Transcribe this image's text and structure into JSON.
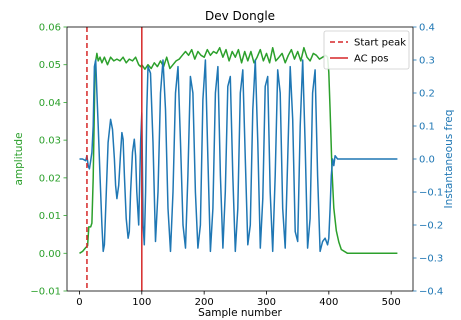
{
  "chart_data": {
    "type": "line",
    "title": "Dev Dongle",
    "xlabel": "Sample number",
    "ylabel_left": "amplitude",
    "ylabel_right": "Instantaneous freq",
    "xlim": [
      -20,
      535
    ],
    "ylim_left": [
      -0.01,
      0.06
    ],
    "ylim_right": [
      -0.4,
      0.4
    ],
    "xticks": [
      "0",
      "100",
      "200",
      "300",
      "400",
      "500"
    ],
    "yticks_left": [
      "−0.01",
      "0.00",
      "0.01",
      "0.02",
      "0.03",
      "0.04",
      "0.05",
      "0.06"
    ],
    "yticks_right": [
      "−0.4",
      "−0.3",
      "−0.2",
      "−0.1",
      "0.0",
      "0.1",
      "0.2",
      "0.3",
      "0.4"
    ],
    "grid": false,
    "legend_position": "top-right",
    "colors": {
      "amplitude": "#2ca02c",
      "freq": "#1f77b4",
      "markers": "#d62728",
      "left_axis": "#2ca02c",
      "right_axis": "#1f77b4"
    },
    "markers": [
      {
        "name": "Start peak",
        "x": 12,
        "style": "dashed"
      },
      {
        "name": "AC pos",
        "x": 100,
        "style": "solid"
      }
    ],
    "series": [
      {
        "axis": "left",
        "x": [
          0,
          5,
          10,
          13,
          15,
          18,
          20,
          22,
          25,
          28,
          30,
          33,
          36,
          40,
          45,
          50,
          55,
          60,
          65,
          70,
          75,
          80,
          85,
          90,
          95,
          98,
          100,
          105,
          110,
          115,
          120,
          125,
          130,
          135,
          140,
          145,
          150,
          155,
          160,
          165,
          170,
          175,
          180,
          185,
          190,
          195,
          200,
          205,
          210,
          215,
          220,
          225,
          230,
          235,
          240,
          245,
          250,
          255,
          260,
          265,
          270,
          275,
          280,
          285,
          290,
          295,
          300,
          305,
          310,
          315,
          320,
          325,
          330,
          335,
          340,
          345,
          350,
          355,
          360,
          365,
          370,
          375,
          380,
          385,
          390,
          395,
          398,
          400,
          402,
          405,
          408,
          412,
          416,
          420,
          430,
          450,
          480,
          510
        ],
        "values": [
          0.0,
          0.0005,
          0.0015,
          0.002,
          0.007,
          0.007,
          0.008,
          0.02,
          0.05,
          0.053,
          0.051,
          0.052,
          0.0505,
          0.052,
          0.05,
          0.052,
          0.051,
          0.0515,
          0.051,
          0.052,
          0.0505,
          0.0515,
          0.051,
          0.052,
          0.05,
          0.0495,
          0.05,
          0.0488,
          0.05,
          0.049,
          0.0505,
          0.0495,
          0.051,
          0.0495,
          0.052,
          0.049,
          0.05,
          0.051,
          0.0515,
          0.0525,
          0.0535,
          0.0525,
          0.054,
          0.0515,
          0.0535,
          0.0525,
          0.052,
          0.054,
          0.0525,
          0.0535,
          0.053,
          0.0545,
          0.052,
          0.054,
          0.051,
          0.0535,
          0.052,
          0.054,
          0.0505,
          0.0535,
          0.051,
          0.0535,
          0.0505,
          0.052,
          0.054,
          0.051,
          0.053,
          0.0505,
          0.0545,
          0.051,
          0.052,
          0.053,
          0.0505,
          0.0525,
          0.054,
          0.0515,
          0.0535,
          0.051,
          0.0545,
          0.052,
          0.051,
          0.053,
          0.0525,
          0.0515,
          0.052,
          0.0525,
          0.052,
          0.048,
          0.038,
          0.022,
          0.012,
          0.006,
          0.003,
          0.001,
          0.0,
          0.0,
          0.0,
          0.0
        ]
      },
      {
        "axis": "right",
        "x": [
          0,
          5,
          10,
          12,
          14,
          16,
          18,
          20,
          22,
          24,
          26,
          28,
          30,
          33,
          36,
          38,
          40,
          43,
          46,
          50,
          53,
          56,
          58,
          60,
          63,
          66,
          68,
          70,
          72,
          75,
          78,
          80,
          82,
          85,
          88,
          90,
          92,
          95,
          98,
          100,
          102,
          104,
          106,
          108,
          110,
          114,
          118,
          122,
          126,
          130,
          134,
          138,
          142,
          146,
          150,
          154,
          158,
          162,
          166,
          170,
          174,
          178,
          182,
          186,
          190,
          194,
          198,
          202,
          206,
          210,
          214,
          218,
          222,
          226,
          230,
          234,
          238,
          242,
          246,
          250,
          254,
          258,
          262,
          266,
          270,
          274,
          278,
          282,
          286,
          290,
          294,
          298,
          302,
          306,
          310,
          314,
          318,
          322,
          326,
          330,
          334,
          338,
          342,
          346,
          350,
          354,
          358,
          362,
          366,
          370,
          374,
          378,
          382,
          386,
          390,
          394,
          398,
          400,
          402,
          404,
          406,
          408,
          410,
          412,
          414,
          416,
          420,
          430,
          450,
          480,
          510
        ],
        "values": [
          0.0,
          0.0,
          -0.005,
          0.01,
          -0.02,
          -0.03,
          -0.005,
          0.02,
          0.1,
          0.28,
          0.3,
          0.2,
          0.1,
          -0.05,
          -0.2,
          -0.28,
          -0.26,
          -0.1,
          0.05,
          0.12,
          0.09,
          0.0,
          -0.08,
          -0.12,
          -0.08,
          0.02,
          0.08,
          0.06,
          -0.05,
          -0.18,
          -0.24,
          -0.22,
          -0.1,
          0.02,
          0.06,
          0.01,
          -0.1,
          -0.2,
          0.05,
          0.14,
          -0.2,
          -0.26,
          -0.1,
          0.15,
          0.28,
          0.26,
          0.05,
          -0.25,
          -0.1,
          0.2,
          0.3,
          0.15,
          -0.15,
          -0.28,
          -0.1,
          0.2,
          0.28,
          0.05,
          -0.2,
          -0.27,
          -0.05,
          0.25,
          0.2,
          -0.1,
          -0.27,
          -0.2,
          0.18,
          0.3,
          0.0,
          -0.28,
          -0.15,
          0.2,
          0.28,
          -0.05,
          -0.27,
          -0.1,
          0.22,
          0.25,
          -0.05,
          -0.28,
          -0.15,
          0.2,
          0.27,
          0.0,
          -0.26,
          -0.2,
          0.15,
          0.3,
          0.05,
          -0.27,
          -0.12,
          0.22,
          0.25,
          -0.1,
          -0.28,
          -0.05,
          0.27,
          0.2,
          -0.15,
          -0.27,
          0.0,
          0.28,
          0.12,
          -0.22,
          -0.25,
          0.1,
          0.3,
          0.05,
          -0.27,
          -0.18,
          0.2,
          0.27,
          -0.05,
          -0.28,
          -0.25,
          -0.24,
          -0.26,
          -0.24,
          -0.15,
          -0.05,
          0.0,
          -0.02,
          0.01,
          0.005,
          0.0,
          0.0,
          0.0,
          0.0,
          0.0,
          0.0,
          0.0
        ]
      }
    ]
  }
}
